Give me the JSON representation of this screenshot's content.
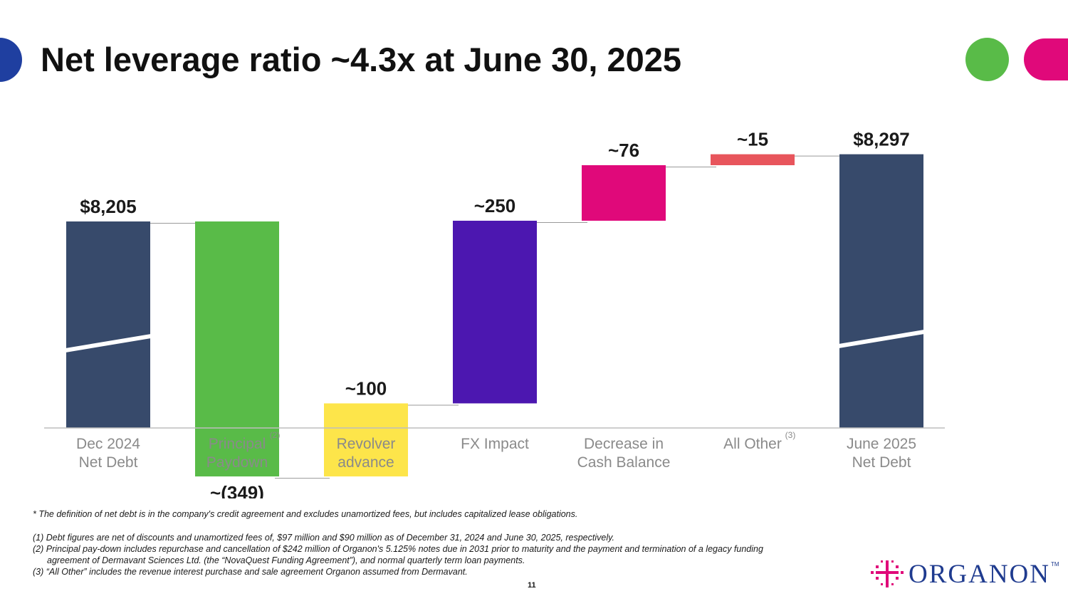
{
  "title": "Net leverage ratio ~4.3x at June 30, 2025",
  "colors": {
    "navy": "#374a6b",
    "green": "#59bb48",
    "yellow": "#fde54a",
    "purple": "#4c17b0",
    "magenta": "#e0097a",
    "coral": "#e8555c",
    "deco_blue": "#1f3fa0",
    "deco_green": "#59bb48",
    "deco_pink": "#e0097a",
    "logo_blue": "#1f3b8f"
  },
  "chart_data": {
    "type": "bar",
    "subtype": "waterfall",
    "categories": [
      {
        "lines": [
          "Dec 2024",
          "Net Debt"
        ],
        "sup": ""
      },
      {
        "lines": [
          "Principal",
          "Paydown"
        ],
        "sup": "(2)"
      },
      {
        "lines": [
          "Revolver",
          "advance"
        ],
        "sup": ""
      },
      {
        "lines": [
          "FX Impact"
        ],
        "sup": ""
      },
      {
        "lines": [
          "Decrease in",
          "Cash Balance"
        ],
        "sup": ""
      },
      {
        "lines": [
          "All Other"
        ],
        "sup": "(3)"
      },
      {
        "lines": [
          "June 2025",
          "Net Debt"
        ],
        "sup": ""
      }
    ],
    "values": [
      8205,
      -349,
      100,
      250,
      76,
      15,
      8297
    ],
    "kinds": [
      "total",
      "delta",
      "delta",
      "delta",
      "delta",
      "delta",
      "total"
    ],
    "labels": [
      "$8,205",
      "~(349)",
      "~100",
      "~250",
      "~76",
      "~15",
      "$8,297"
    ],
    "bar_colors": [
      "#374a6b",
      "#59bb48",
      "#fde54a",
      "#4c17b0",
      "#e0097a",
      "#e8555c",
      "#374a6b"
    ],
    "axis_break": true,
    "ylabel": "",
    "xlabel": ""
  },
  "footnotes": {
    "definition": "* The definition of net debt is in the company's credit agreement and excludes unamortized fees, but includes capitalized lease obligations.",
    "note1": "(1) Debt figures are net of discounts and unamortized fees of, $97 million and $90 million as of December 31, 2024 and June 30, 2025, respectively.",
    "note2a": "(2) Principal pay-down includes repurchase and cancellation of $242 million of Organon's 5.125% notes due in 2031 prior to maturity and the payment and termination of a legacy funding",
    "note2b": "agreement of Dermavant Sciences Ltd. (the “NovaQuest Funding Agreement”), and normal quarterly term loan payments.",
    "note3": "(3) “All Other” includes the revenue interest purchase and sale agreement Organon assumed from Dermavant."
  },
  "page_number": "11",
  "logo": {
    "text": "ORGANON",
    "tm": "TM",
    "icon": "organon-cross-dots-icon"
  }
}
